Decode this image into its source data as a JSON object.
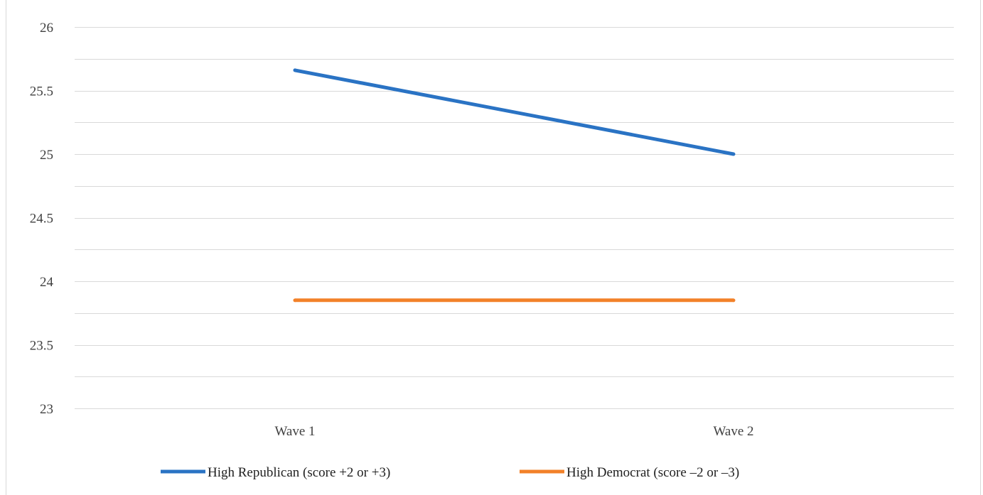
{
  "chart_data": {
    "type": "line",
    "title": "",
    "xlabel": "",
    "ylabel": "",
    "categories": [
      "Wave 1",
      "Wave 2"
    ],
    "ylim": [
      23,
      26
    ],
    "y_ticks": [
      "23",
      "23.5",
      "24",
      "24.5",
      "25",
      "25.5",
      "26"
    ],
    "grid": true,
    "legend_position": "bottom",
    "series": [
      {
        "name": "High Republican (score +2 or +3)",
        "values": [
          25.66,
          25.0
        ],
        "color": "#2a73c4"
      },
      {
        "name": "High Democrat (score –2 or –3)",
        "values": [
          23.85,
          23.85
        ],
        "color": "#f28129"
      }
    ]
  }
}
